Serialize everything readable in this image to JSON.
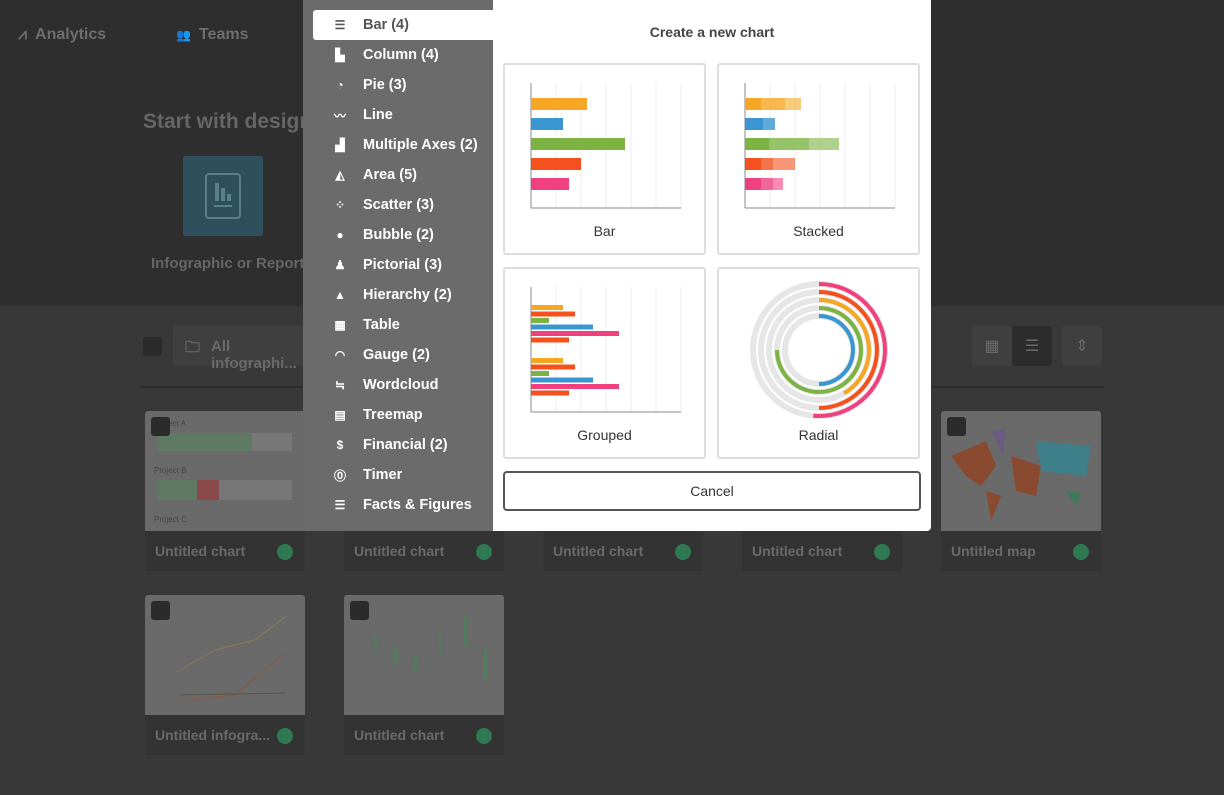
{
  "nav": {
    "analytics": "Analytics",
    "teams": "Teams"
  },
  "design": {
    "title": "Start with design:",
    "tile_label": "Infographic or Report"
  },
  "filter": {
    "label": "All infographi..."
  },
  "cards": [
    {
      "title": "Untitled chart"
    },
    {
      "title": "Untitled chart"
    },
    {
      "title": "Untitled chart"
    },
    {
      "title": "Untitled chart"
    },
    {
      "title": "Untitled map"
    },
    {
      "title": "Untitled infogra..."
    },
    {
      "title": "Untitled chart"
    }
  ],
  "card_thumb_text": {
    "project_a": "Project A",
    "project_b": "Project B",
    "project_c": "Project C"
  },
  "menu": {
    "items": [
      {
        "label": "Bar (4)",
        "icon": "bar-icon",
        "glyph": "☰"
      },
      {
        "label": "Column (4)",
        "icon": "column-icon",
        "glyph": "▙"
      },
      {
        "label": "Pie (3)",
        "icon": "pie-icon",
        "glyph": "◔"
      },
      {
        "label": "Line",
        "icon": "line-icon",
        "glyph": "〰"
      },
      {
        "label": "Multiple Axes (2)",
        "icon": "multiple-axes-icon",
        "glyph": "▟"
      },
      {
        "label": "Area (5)",
        "icon": "area-icon",
        "glyph": "◭"
      },
      {
        "label": "Scatter (3)",
        "icon": "scatter-icon",
        "glyph": "⁘"
      },
      {
        "label": "Bubble (2)",
        "icon": "bubble-icon",
        "glyph": "●"
      },
      {
        "label": "Pictorial (3)",
        "icon": "pictorial-icon",
        "glyph": "♟"
      },
      {
        "label": "Hierarchy (2)",
        "icon": "hierarchy-icon",
        "glyph": "▲"
      },
      {
        "label": "Table",
        "icon": "table-icon",
        "glyph": "▦"
      },
      {
        "label": "Gauge (2)",
        "icon": "gauge-icon",
        "glyph": "◠"
      },
      {
        "label": "Wordcloud",
        "icon": "wordcloud-icon",
        "glyph": "≒"
      },
      {
        "label": "Treemap",
        "icon": "treemap-icon",
        "glyph": "▤"
      },
      {
        "label": "Financial (2)",
        "icon": "financial-icon",
        "glyph": "$"
      },
      {
        "label": "Timer",
        "icon": "timer-icon",
        "glyph": "⓪"
      },
      {
        "label": "Facts & Figures",
        "icon": "facts-icon",
        "glyph": "☰"
      }
    ],
    "active": 0
  },
  "modal": {
    "title": "Create a new chart",
    "options": {
      "bar": "Bar",
      "stacked": "Stacked",
      "grouped": "Grouped",
      "radial": "Radial"
    },
    "cancel": "Cancel"
  },
  "colors": {
    "orange": "#f5a623",
    "blue": "#3a96d0",
    "green": "#7cb342",
    "red": "#f4511e",
    "pink": "#f0407f"
  }
}
